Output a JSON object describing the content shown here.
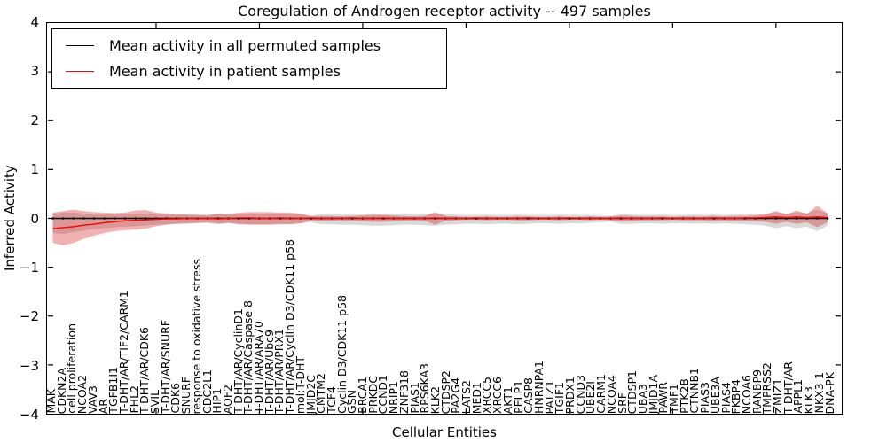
{
  "title": "Coregulation of Androgen receptor activity -- 497 samples",
  "legend": {
    "items": [
      {
        "label": "Mean activity in all permuted samples",
        "color": "#000000"
      },
      {
        "label": "Mean activity in patient samples",
        "color": "#ff0000"
      }
    ]
  },
  "axes": {
    "xlabel": "Cellular Entities",
    "ylabel": "Inferred Activity",
    "ytick_labels": [
      "4",
      "3",
      "2",
      "1",
      "0",
      "−1",
      "−2",
      "−3",
      "−4"
    ],
    "ytick_values": [
      4,
      3,
      2,
      1,
      0,
      -1,
      -2,
      -3,
      -4
    ],
    "ylim": [
      -4,
      4
    ]
  },
  "chart_data": {
    "type": "line",
    "title": "Coregulation of Androgen receptor activity -- 497 samples",
    "xlabel": "Cellular Entities",
    "ylabel": "Inferred Activity",
    "ylim": [
      -4,
      4
    ],
    "grid": false,
    "legend_position": "upper left",
    "categories": [
      "MAK",
      "CDKN2A",
      "cell proliferation",
      "NCOA2",
      "VAV3",
      "AR",
      "TGFB1I1",
      "T-DHT/AR/TIF2/CARM1",
      "FHL2",
      "T-DHT/AR/CDK6",
      "SVIL",
      "T-DHT/AR/SNURF",
      "CDK6",
      "SNURF",
      "response to oxidative stress",
      "CDC2L1",
      "HIP1",
      "AOF2",
      "T-DHT/AR/CyclinD1",
      "T-DHT/AR/Caspase 8",
      "T-DHT/AR/ARA70",
      "T-DHT/AR/Ubc9",
      "T-DHT/AR/PRX1",
      "T-DHT/AR/Cyclin D3/CDK11 p58",
      "mol:T-DHT",
      "JMJD2C",
      "CMTM2",
      "TCF4",
      "Cyclin D3/CDK11 p58",
      "GSN",
      "BRCA1",
      "PRKDC",
      "CCND1",
      "NRIP1",
      "ZNF318",
      "PIAS1",
      "RPS6KA3",
      "KLK2",
      "CTDSP2",
      "PA2G4",
      "LATS2",
      "MED1",
      "XRCC5",
      "XRCC6",
      "AKT1",
      "PELP1",
      "CASP8",
      "HNRNPA1",
      "PATZ1",
      "TGIF1",
      "PRDX1",
      "CCND3",
      "UBE2I",
      "CARM1",
      "NCOA4",
      "SRF",
      "CTDSP1",
      "UBA3",
      "JMJD1A",
      "PAWR",
      "TMF1",
      "PTK2B",
      "CTNNB1",
      "PIAS3",
      "UBE3A",
      "PIAS4",
      "FKBP4",
      "NCOA6",
      "RANBP9",
      "TMPRSS2",
      "ZMIZ1",
      "T-DHT/AR",
      "APPL1",
      "KLK3",
      "NKX3-1",
      "DNA-PK"
    ],
    "series": [
      {
        "name": "Mean activity in all permuted samples",
        "color": "#000000",
        "band_color": "rgba(120,120,120,0.28)",
        "marker": true,
        "values": [
          0,
          0,
          0,
          0,
          0,
          0,
          0,
          0,
          0,
          0,
          0,
          0,
          0,
          0,
          0,
          0,
          0,
          0,
          0,
          0,
          0,
          0,
          0,
          0,
          0,
          0,
          0,
          0,
          0,
          0,
          0,
          0,
          0,
          0,
          0,
          0,
          0,
          0,
          0,
          0,
          0,
          0,
          0,
          0,
          0,
          0,
          0,
          0,
          0,
          0,
          0,
          0,
          0,
          0,
          0,
          0,
          0,
          0,
          0,
          0,
          0,
          0,
          0,
          0,
          0,
          0,
          0,
          0,
          0,
          0,
          0,
          0,
          0,
          0,
          0,
          0
        ],
        "band_upper": [
          0.1,
          0.12,
          0.12,
          0.1,
          0.1,
          0.1,
          0.09,
          0.09,
          0.09,
          0.09,
          0.08,
          0.08,
          0.08,
          0.08,
          0.08,
          0.08,
          0.09,
          0.08,
          0.09,
          0.09,
          0.09,
          0.09,
          0.09,
          0.09,
          0.08,
          0.06,
          0.1,
          0.08,
          0.08,
          0.08,
          0.08,
          0.09,
          0.09,
          0.08,
          0.08,
          0.08,
          0.09,
          0.1,
          0.08,
          0.08,
          0.07,
          0.07,
          0.08,
          0.07,
          0.07,
          0.08,
          0.07,
          0.07,
          0.07,
          0.08,
          0.07,
          0.07,
          0.07,
          0.06,
          0.05,
          0.08,
          0.08,
          0.07,
          0.07,
          0.08,
          0.07,
          0.07,
          0.08,
          0.07,
          0.08,
          0.07,
          0.08,
          0.08,
          0.09,
          0.1,
          0.13,
          0.1,
          0.13,
          0.11,
          0.18,
          0.1
        ],
        "band_lower": [
          -0.3,
          -0.32,
          -0.28,
          -0.25,
          -0.22,
          -0.2,
          -0.18,
          -0.17,
          -0.16,
          -0.15,
          -0.13,
          -0.12,
          -0.11,
          -0.11,
          -0.1,
          -0.1,
          -0.11,
          -0.1,
          -0.11,
          -0.12,
          -0.12,
          -0.12,
          -0.11,
          -0.11,
          -0.1,
          -0.08,
          -0.12,
          -0.12,
          -0.13,
          -0.13,
          -0.14,
          -0.15,
          -0.15,
          -0.14,
          -0.13,
          -0.13,
          -0.14,
          -0.15,
          -0.13,
          -0.12,
          -0.11,
          -0.11,
          -0.12,
          -0.11,
          -0.11,
          -0.12,
          -0.11,
          -0.1,
          -0.1,
          -0.11,
          -0.1,
          -0.1,
          -0.09,
          -0.08,
          -0.07,
          -0.11,
          -0.11,
          -0.1,
          -0.1,
          -0.11,
          -0.1,
          -0.1,
          -0.11,
          -0.1,
          -0.11,
          -0.1,
          -0.11,
          -0.12,
          -0.13,
          -0.15,
          -0.2,
          -0.16,
          -0.2,
          -0.17,
          -0.26,
          -0.15
        ]
      },
      {
        "name": "Mean activity in patient samples",
        "color": "#ff0000",
        "band_color": "rgba(222,30,30,0.35)",
        "marker": false,
        "values": [
          -0.21,
          -0.19,
          -0.17,
          -0.14,
          -0.12,
          -0.09,
          -0.07,
          -0.05,
          -0.04,
          -0.03,
          -0.02,
          -0.01,
          -0.01,
          0,
          0,
          0,
          -0.01,
          0,
          0.01,
          0.01,
          0,
          0,
          0.01,
          0,
          0,
          0.01,
          0,
          0,
          0,
          0.01,
          0,
          0,
          0.01,
          0,
          0,
          0,
          0,
          0.01,
          0,
          0,
          0,
          0.01,
          0,
          0,
          0,
          0,
          0.01,
          0,
          0,
          0,
          0.01,
          0,
          0,
          0,
          0,
          0.01,
          0,
          0,
          0,
          0.01,
          0,
          0,
          0,
          0,
          0.01,
          0,
          0,
          0.01,
          0.01,
          0.02,
          0.03,
          0.02,
          0.03,
          0.02,
          0.03,
          0.02
        ],
        "band_upper": [
          0.12,
          0.15,
          0.18,
          0.15,
          0.13,
          0.12,
          0.11,
          0.12,
          0.16,
          0.17,
          0.12,
          0.1,
          0.09,
          0.08,
          0.07,
          0.06,
          0.1,
          0.08,
          0.12,
          0.13,
          0.13,
          0.13,
          0.12,
          0.12,
          0.1,
          0.04,
          0.05,
          0.05,
          0.04,
          0.05,
          0.06,
          0.07,
          0.07,
          0.06,
          0.05,
          0.04,
          0.05,
          0.13,
          0.05,
          0.04,
          0.03,
          0.03,
          0.04,
          0.03,
          0.03,
          0.04,
          0.04,
          0.03,
          0.03,
          0.04,
          0.03,
          0.03,
          0.04,
          0.03,
          0.04,
          0.06,
          0.05,
          0.04,
          0.04,
          0.04,
          0.03,
          0.04,
          0.04,
          0.04,
          0.05,
          0.04,
          0.05,
          0.05,
          0.06,
          0.08,
          0.15,
          0.08,
          0.16,
          0.09,
          0.26,
          0.1
        ],
        "band_lower": [
          -0.5,
          -0.55,
          -0.5,
          -0.42,
          -0.35,
          -0.3,
          -0.26,
          -0.24,
          -0.23,
          -0.21,
          -0.16,
          -0.13,
          -0.11,
          -0.1,
          -0.09,
          -0.08,
          -0.11,
          -0.09,
          -0.12,
          -0.13,
          -0.13,
          -0.13,
          -0.12,
          -0.12,
          -0.1,
          -0.04,
          -0.05,
          -0.05,
          -0.04,
          -0.05,
          -0.06,
          -0.07,
          -0.07,
          -0.06,
          -0.05,
          -0.04,
          -0.05,
          -0.13,
          -0.05,
          -0.04,
          -0.03,
          -0.03,
          -0.04,
          -0.03,
          -0.03,
          -0.04,
          -0.04,
          -0.03,
          -0.03,
          -0.04,
          -0.03,
          -0.03,
          -0.04,
          -0.03,
          -0.04,
          -0.06,
          -0.05,
          -0.04,
          -0.04,
          -0.04,
          -0.03,
          -0.04,
          -0.04,
          -0.04,
          -0.05,
          -0.04,
          -0.05,
          -0.05,
          -0.06,
          -0.07,
          -0.11,
          -0.07,
          -0.11,
          -0.08,
          -0.18,
          -0.08
        ]
      }
    ],
    "xtick_major_positions": [
      10,
      20,
      30,
      40,
      50,
      60,
      70
    ]
  }
}
